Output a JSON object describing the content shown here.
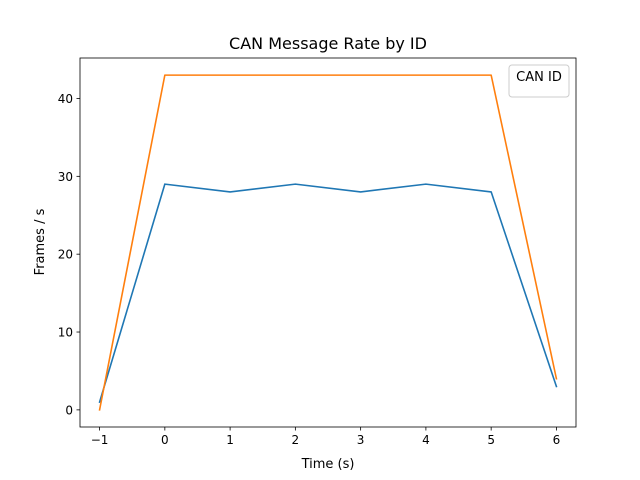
{
  "chart_data": {
    "type": "line",
    "title": "CAN Message Rate by ID",
    "xlabel": "Time (s)",
    "ylabel": "Frames / s",
    "xlim": [
      -1.3,
      6.3
    ],
    "ylim": [
      -2.2,
      45.2
    ],
    "x_ticks": [
      -1,
      0,
      1,
      2,
      3,
      4,
      5,
      6
    ],
    "x_tick_labels": [
      "−1",
      "0",
      "1",
      "2",
      "3",
      "4",
      "5",
      "6"
    ],
    "y_ticks": [
      0,
      10,
      20,
      30,
      40
    ],
    "y_tick_labels": [
      "0",
      "10",
      "20",
      "30",
      "40"
    ],
    "grid": false,
    "legend": {
      "title": "CAN ID",
      "placement": "top-right",
      "entries": []
    },
    "x": [
      -1,
      0,
      1,
      2,
      3,
      4,
      5,
      6
    ],
    "series": [
      {
        "color": "#1f77b4",
        "values": [
          1,
          29,
          28,
          29,
          28,
          29,
          28,
          3
        ]
      },
      {
        "color": "#ff7f0e",
        "values": [
          0,
          43,
          43,
          43,
          43,
          43,
          43,
          4
        ]
      }
    ]
  }
}
